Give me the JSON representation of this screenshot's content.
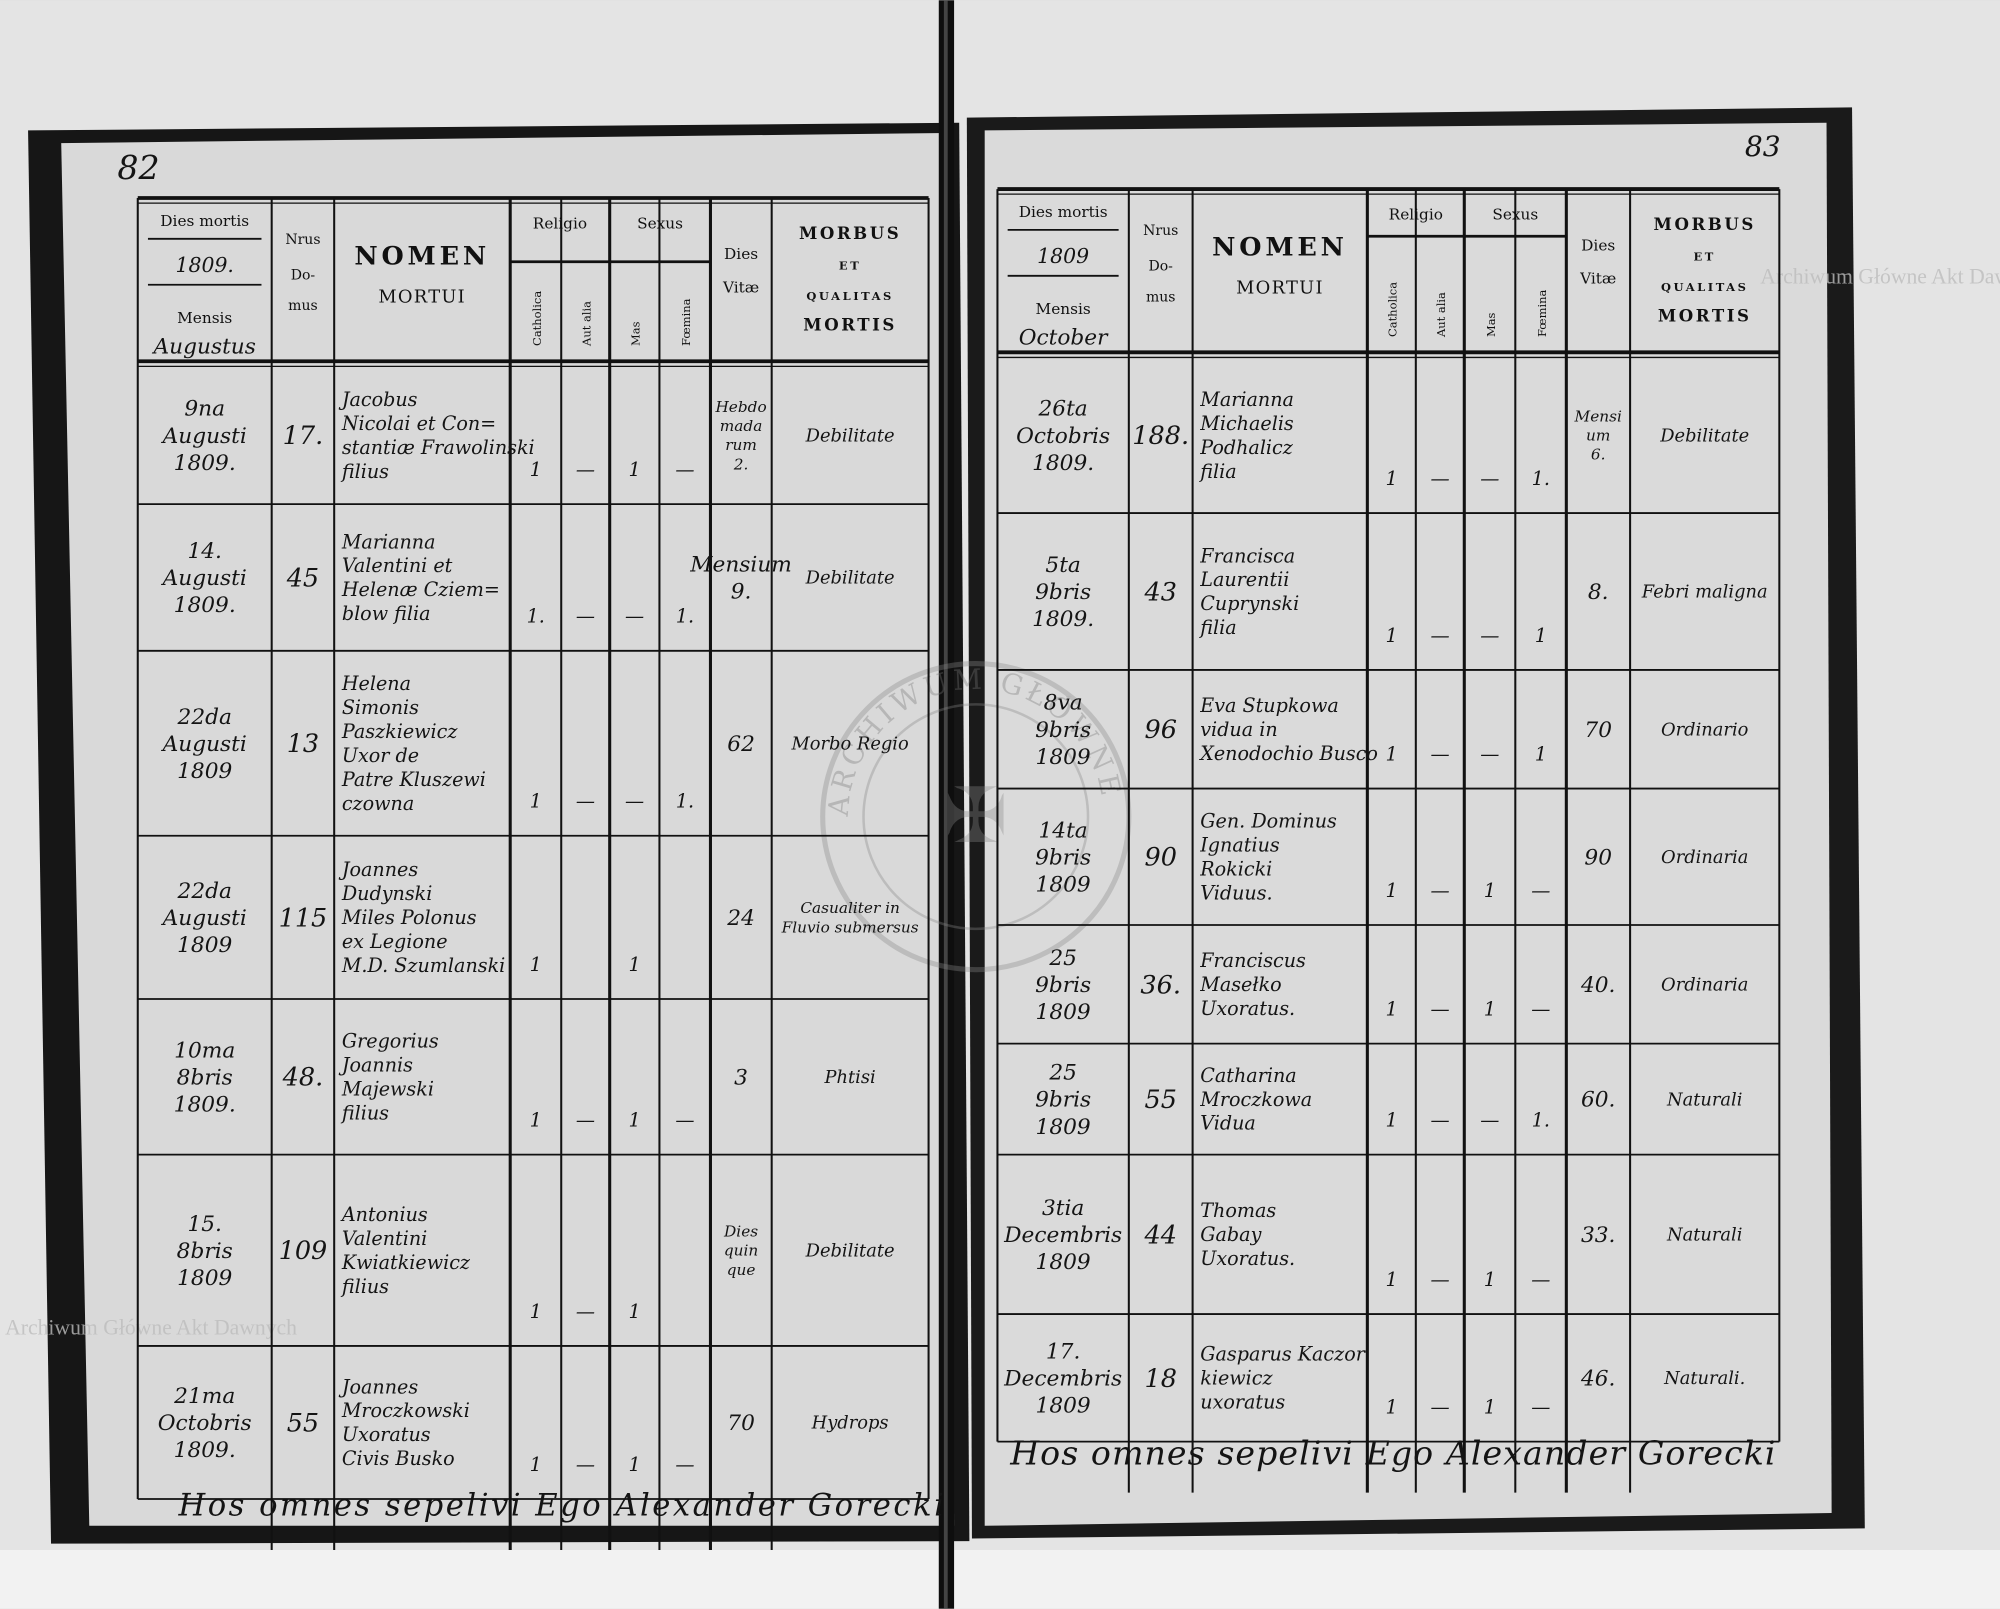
{
  "watermark_text": "Archiwum Główne Akt Dawnych",
  "stamp_text": "ARCHIWUM GŁÓWNE AKT DAWNYCH",
  "header": {
    "dies_mortis": "Dies mortis",
    "mensis": "Mensis",
    "nrus": "Nrus",
    "domus": [
      "Do-",
      "mus"
    ],
    "nomen": "NOMEN",
    "mortui": "MORTUI",
    "religio": "Religio",
    "sexus": "Sexus",
    "catholica": "Catholica",
    "aut_alia": "Aut alia",
    "mas": "Mas",
    "foemina": "Fœmina",
    "dies_vitae": [
      "Dies",
      "Vitæ"
    ],
    "morbus": [
      "MORBUS",
      "ET",
      "QUALITAS",
      "MORTIS"
    ]
  },
  "left_page": {
    "page_number": "82",
    "year": "1809.",
    "month": "Augustus",
    "rows": [
      {
        "date": [
          "9na",
          "Augusti",
          "1809."
        ],
        "nr": "17.",
        "name": [
          "Jacobus",
          "Nicolai et Con=",
          "stantiæ Frawolinski",
          "filius"
        ],
        "catholica": "1",
        "aut_alia": "—",
        "mas": "1",
        "foemina": "—",
        "vitae": [
          "Hebdo",
          "mada",
          "rum",
          "2."
        ],
        "morbus": [
          "Debilitate"
        ]
      },
      {
        "date": [
          "14.",
          "Augusti",
          "1809."
        ],
        "nr": "45",
        "name": [
          "Marianna",
          "Valentini et",
          "Helenæ Cziem=",
          "blow filia"
        ],
        "catholica": "1.",
        "aut_alia": "—",
        "mas": "—",
        "foemina": "1.",
        "vitae": [
          "Mensium",
          "9."
        ],
        "morbus": [
          "Debilitate"
        ]
      },
      {
        "date": [
          "22da",
          "Augusti",
          "1809"
        ],
        "nr": "13",
        "name": [
          "Helena",
          "Simonis",
          "Paszkiewicz",
          "Uxor de",
          "Patre Kluszewi",
          "czowna"
        ],
        "catholica": "1",
        "aut_alia": "—",
        "mas": "—",
        "foemina": "1.",
        "vitae": [
          "62"
        ],
        "morbus": [
          "Morbo Regio"
        ]
      },
      {
        "date": [
          "22da",
          "Augusti",
          "1809"
        ],
        "nr": "115",
        "name": [
          "Joannes",
          "Dudynski",
          "Miles Polonus",
          "ex Legione",
          "M.D. Szumlanski"
        ],
        "catholica": "1",
        "aut_alia": "",
        "mas": "1",
        "foemina": "",
        "vitae": [
          "24"
        ],
        "morbus": [
          "Casualiter in",
          "Fluvio submersus"
        ]
      },
      {
        "date": [
          "10ma",
          "8bris",
          "1809."
        ],
        "nr": "48.",
        "name": [
          "Gregorius",
          "Joannis",
          "Majewski",
          "filius"
        ],
        "catholica": "1",
        "aut_alia": "—",
        "mas": "1",
        "foemina": "—",
        "vitae": [
          "3"
        ],
        "morbus": [
          "Phtisi"
        ]
      },
      {
        "date": [
          "15.",
          "8bris",
          "1809"
        ],
        "nr": "109",
        "name": [
          "Antonius",
          "Valentini",
          "Kwiatkiewicz",
          "filius"
        ],
        "catholica": "1",
        "aut_alia": "—",
        "mas": "1",
        "foemina": "",
        "vitae": [
          "Dies",
          "quin",
          "que"
        ],
        "morbus": [
          "Debilitate"
        ]
      },
      {
        "date": [
          "21ma",
          "Octobris",
          "1809."
        ],
        "nr": "55",
        "name": [
          "Joannes",
          "Mroczkowski",
          "Uxoratus",
          "Civis Busko"
        ],
        "catholica": "1",
        "aut_alia": "—",
        "mas": "1",
        "foemina": "—",
        "vitae": [
          "70"
        ],
        "morbus": [
          "Hydrops"
        ]
      }
    ],
    "signature": "Hos omnes sepelivi Ego Alexander Gorecki"
  },
  "right_page": {
    "page_number": "83",
    "year": "1809",
    "month": "October",
    "rows": [
      {
        "date": [
          "26ta",
          "Octobris",
          "1809."
        ],
        "nr": "188.",
        "name": [
          "Marianna",
          "Michaelis",
          "Podhalicz",
          "filia"
        ],
        "catholica": "1",
        "aut_alia": "—",
        "mas": "—",
        "foemina": "1.",
        "vitae": [
          "Mensi",
          "um",
          "6."
        ],
        "morbus": [
          "Debilitate"
        ]
      },
      {
        "date": [
          "5ta",
          "9bris",
          "1809."
        ],
        "nr": "43",
        "name": [
          "Francisca",
          "Laurentii",
          "Cuprynski",
          "filia"
        ],
        "catholica": "1",
        "aut_alia": "—",
        "mas": "—",
        "foemina": "1",
        "vitae": [
          "8."
        ],
        "morbus": [
          "Febri maligna"
        ]
      },
      {
        "date": [
          "8va",
          "9bris",
          "1809"
        ],
        "nr": "96",
        "name": [
          "Eva Stupkowa",
          "vidua in",
          "Xenodochio Busco"
        ],
        "catholica": "1",
        "aut_alia": "—",
        "mas": "—",
        "foemina": "1",
        "vitae": [
          "70"
        ],
        "morbus": [
          "Ordinario"
        ]
      },
      {
        "date": [
          "14ta",
          "9bris",
          "1809"
        ],
        "nr": "90",
        "name": [
          "Gen. Dominus",
          "Ignatius",
          "Rokicki",
          "Viduus."
        ],
        "catholica": "1",
        "aut_alia": "—",
        "mas": "1",
        "foemina": "—",
        "vitae": [
          "90"
        ],
        "morbus": [
          "Ordinaria"
        ]
      },
      {
        "date": [
          "25",
          "9bris",
          "1809"
        ],
        "nr": "36.",
        "name": [
          "Franciscus",
          "Masełko",
          "Uxoratus."
        ],
        "catholica": "1",
        "aut_alia": "—",
        "mas": "1",
        "foemina": "—",
        "vitae": [
          "40."
        ],
        "morbus": [
          "Ordinaria"
        ]
      },
      {
        "date": [
          "25",
          "9bris",
          "1809"
        ],
        "nr": "55",
        "name": [
          "Catharina",
          "Mroczkowa",
          "Vidua"
        ],
        "catholica": "1",
        "aut_alia": "—",
        "mas": "—",
        "foemina": "1.",
        "vitae": [
          "60."
        ],
        "morbus": [
          "Naturali"
        ]
      },
      {
        "date": [
          "3tia",
          "Decembris",
          "1809"
        ],
        "nr": "44",
        "name": [
          "Thomas",
          "Gabay",
          "Uxoratus."
        ],
        "catholica": "1",
        "aut_alia": "—",
        "mas": "1",
        "foemina": "—",
        "vitae": [
          "33."
        ],
        "morbus": [
          "Naturali"
        ]
      },
      {
        "date": [
          "17.",
          "Decembris",
          "1809"
        ],
        "nr": "18",
        "name": [
          "Gasparus Kaczor",
          "kiewicz",
          "uxoratus"
        ],
        "catholica": "1",
        "aut_alia": "—",
        "mas": "1",
        "foemina": "—",
        "vitae": [
          "46."
        ],
        "morbus": [
          "Naturali."
        ]
      }
    ],
    "signature": "Hos omnes sepelivi Ego Alexander Gorecki"
  }
}
